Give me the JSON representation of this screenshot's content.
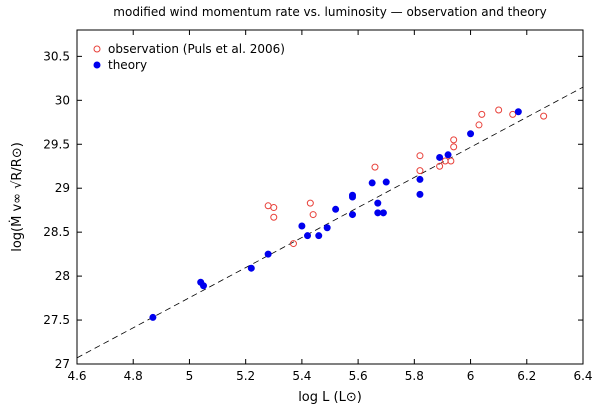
{
  "chart_data": {
    "type": "scatter",
    "title": "modified wind momentum rate vs. luminosity — observation and theory",
    "xlabel": "log L (L⊙)",
    "ylabel": "log(Ṁ v∞ √R/R⊙)",
    "xlim": [
      4.6,
      6.4
    ],
    "ylim": [
      27,
      30.8
    ],
    "x_ticks": [
      4.6,
      4.8,
      5.0,
      5.2,
      5.4,
      5.6,
      5.8,
      6.0,
      6.2,
      6.4
    ],
    "y_ticks": [
      27,
      27.5,
      28,
      28.5,
      29,
      29.5,
      30,
      30.5
    ],
    "x_tick_labels": [
      "4.6",
      "4.8",
      "5",
      "5.2",
      "5.4",
      "5.6",
      "5.8",
      "6",
      "6.2",
      "6.4"
    ],
    "y_tick_labels": [
      "27",
      "27.5",
      "28",
      "28.5",
      "29",
      "29.5",
      "30",
      "30.5"
    ],
    "grid": false,
    "legend_position": "top-left",
    "series": [
      {
        "name": "observation (Puls et al. 2006)",
        "marker": "open-circle",
        "color": "#e8413a",
        "points": [
          [
            5.28,
            28.8
          ],
          [
            5.3,
            28.78
          ],
          [
            5.3,
            28.67
          ],
          [
            5.37,
            28.37
          ],
          [
            5.43,
            28.83
          ],
          [
            5.44,
            28.7
          ],
          [
            5.66,
            29.24
          ],
          [
            5.82,
            29.37
          ],
          [
            5.82,
            29.2
          ],
          [
            5.89,
            29.25
          ],
          [
            5.91,
            29.31
          ],
          [
            5.93,
            29.31
          ],
          [
            5.94,
            29.47
          ],
          [
            5.94,
            29.55
          ],
          [
            6.03,
            29.72
          ],
          [
            6.04,
            29.84
          ],
          [
            6.1,
            29.89
          ],
          [
            6.15,
            29.84
          ],
          [
            6.26,
            29.82
          ]
        ]
      },
      {
        "name": "theory",
        "marker": "filled-circle",
        "color": "#0000ee",
        "points": [
          [
            4.87,
            27.53
          ],
          [
            5.04,
            27.93
          ],
          [
            5.05,
            27.89
          ],
          [
            5.22,
            28.09
          ],
          [
            5.28,
            28.25
          ],
          [
            5.4,
            28.57
          ],
          [
            5.42,
            28.46
          ],
          [
            5.46,
            28.46
          ],
          [
            5.49,
            28.55
          ],
          [
            5.52,
            28.76
          ],
          [
            5.58,
            28.92
          ],
          [
            5.58,
            28.9
          ],
          [
            5.58,
            28.7
          ],
          [
            5.65,
            29.06
          ],
          [
            5.67,
            28.83
          ],
          [
            5.67,
            28.72
          ],
          [
            5.69,
            28.72
          ],
          [
            5.7,
            29.07
          ],
          [
            5.82,
            29.1
          ],
          [
            5.82,
            28.93
          ],
          [
            5.89,
            29.35
          ],
          [
            5.92,
            29.38
          ],
          [
            6.0,
            29.62
          ],
          [
            6.17,
            29.87
          ]
        ]
      }
    ],
    "fit_line": {
      "style": "dashed",
      "color": "#000000",
      "x": [
        4.6,
        6.4
      ],
      "y": [
        27.07,
        30.15
      ]
    }
  }
}
